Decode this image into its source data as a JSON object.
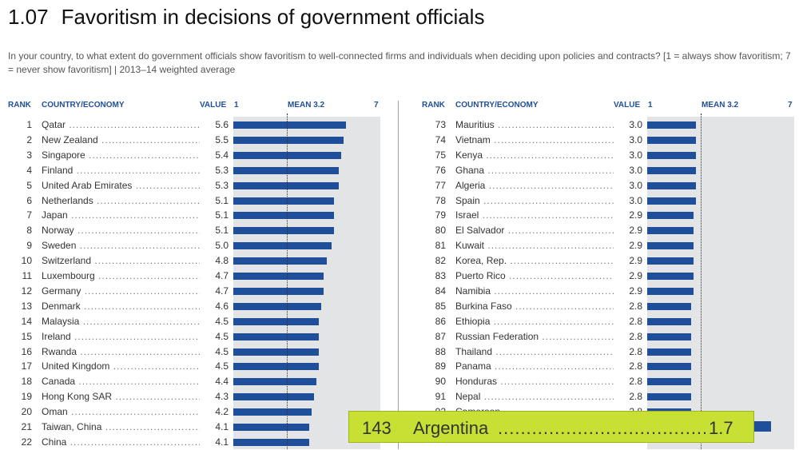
{
  "header": {
    "number": "1.07",
    "title": "Favoritism in decisions of government officials",
    "subtitle": "In your country, to what extent do government officials show favoritism to well-connected firms and individuals when deciding upon policies and contracts? [1 = always show favoritism; 7 = never show favoritism] | 2013–14 weighted average"
  },
  "columns": {
    "rank": "RANK",
    "country": "COUNTRY/ECONOMY",
    "value": "VALUE",
    "scale_min": "1",
    "mean": "MEAN 3.2",
    "scale_max": "7"
  },
  "colors": {
    "bar": "#1f4e9a",
    "highlight": "#c8e034",
    "background_band": "#e3e4e6"
  },
  "chart_data": {
    "type": "bar",
    "orientation": "horizontal",
    "xlim": [
      1,
      7
    ],
    "mean": 3.2,
    "left": [
      {
        "rank": "1",
        "country": "Qatar",
        "value": 5.6
      },
      {
        "rank": "2",
        "country": "New Zealand",
        "value": 5.5
      },
      {
        "rank": "3",
        "country": "Singapore",
        "value": 5.4
      },
      {
        "rank": "4",
        "country": "Finland",
        "value": 5.3
      },
      {
        "rank": "5",
        "country": "United Arab Emirates",
        "value": 5.3
      },
      {
        "rank": "6",
        "country": "Netherlands",
        "value": 5.1
      },
      {
        "rank": "7",
        "country": "Japan",
        "value": 5.1
      },
      {
        "rank": "8",
        "country": "Norway",
        "value": 5.1
      },
      {
        "rank": "9",
        "country": "Sweden",
        "value": 5.0
      },
      {
        "rank": "10",
        "country": "Switzerland",
        "value": 4.8
      },
      {
        "rank": "11",
        "country": "Luxembourg",
        "value": 4.7
      },
      {
        "rank": "12",
        "country": "Germany",
        "value": 4.7
      },
      {
        "rank": "13",
        "country": "Denmark",
        "value": 4.6
      },
      {
        "rank": "14",
        "country": "Malaysia",
        "value": 4.5
      },
      {
        "rank": "15",
        "country": "Ireland",
        "value": 4.5
      },
      {
        "rank": "16",
        "country": "Rwanda",
        "value": 4.5
      },
      {
        "rank": "17",
        "country": "United Kingdom",
        "value": 4.5
      },
      {
        "rank": "18",
        "country": "Canada",
        "value": 4.4
      },
      {
        "rank": "19",
        "country": "Hong Kong SAR",
        "value": 4.3
      },
      {
        "rank": "20",
        "country": "Oman",
        "value": 4.2
      },
      {
        "rank": "21",
        "country": "Taiwan, China",
        "value": 4.1
      },
      {
        "rank": "22",
        "country": "China",
        "value": 4.1
      }
    ],
    "right": [
      {
        "rank": "73",
        "country": "Mauritius",
        "value": 3.0
      },
      {
        "rank": "74",
        "country": "Vietnam",
        "value": 3.0
      },
      {
        "rank": "75",
        "country": "Kenya",
        "value": 3.0
      },
      {
        "rank": "76",
        "country": "Ghana",
        "value": 3.0
      },
      {
        "rank": "77",
        "country": "Algeria",
        "value": 3.0
      },
      {
        "rank": "78",
        "country": "Spain",
        "value": 3.0
      },
      {
        "rank": "79",
        "country": "Israel",
        "value": 2.9
      },
      {
        "rank": "80",
        "country": "El Salvador",
        "value": 2.9
      },
      {
        "rank": "81",
        "country": "Kuwait",
        "value": 2.9
      },
      {
        "rank": "82",
        "country": "Korea, Rep.",
        "value": 2.9
      },
      {
        "rank": "83",
        "country": "Puerto Rico",
        "value": 2.9
      },
      {
        "rank": "84",
        "country": "Namibia",
        "value": 2.9
      },
      {
        "rank": "85",
        "country": "Burkina Faso",
        "value": 2.8
      },
      {
        "rank": "86",
        "country": "Ethiopia",
        "value": 2.8
      },
      {
        "rank": "87",
        "country": "Russian Federation",
        "value": 2.8
      },
      {
        "rank": "88",
        "country": "Thailand",
        "value": 2.8
      },
      {
        "rank": "89",
        "country": "Panama",
        "value": 2.8
      },
      {
        "rank": "90",
        "country": "Honduras",
        "value": 2.8
      },
      {
        "rank": "91",
        "country": "Nepal",
        "value": 2.8
      },
      {
        "rank": "92",
        "country": "Cameroon",
        "value": 2.8
      }
    ],
    "highlight": {
      "rank": "143",
      "country": "Argentina",
      "value": 1.7
    }
  }
}
